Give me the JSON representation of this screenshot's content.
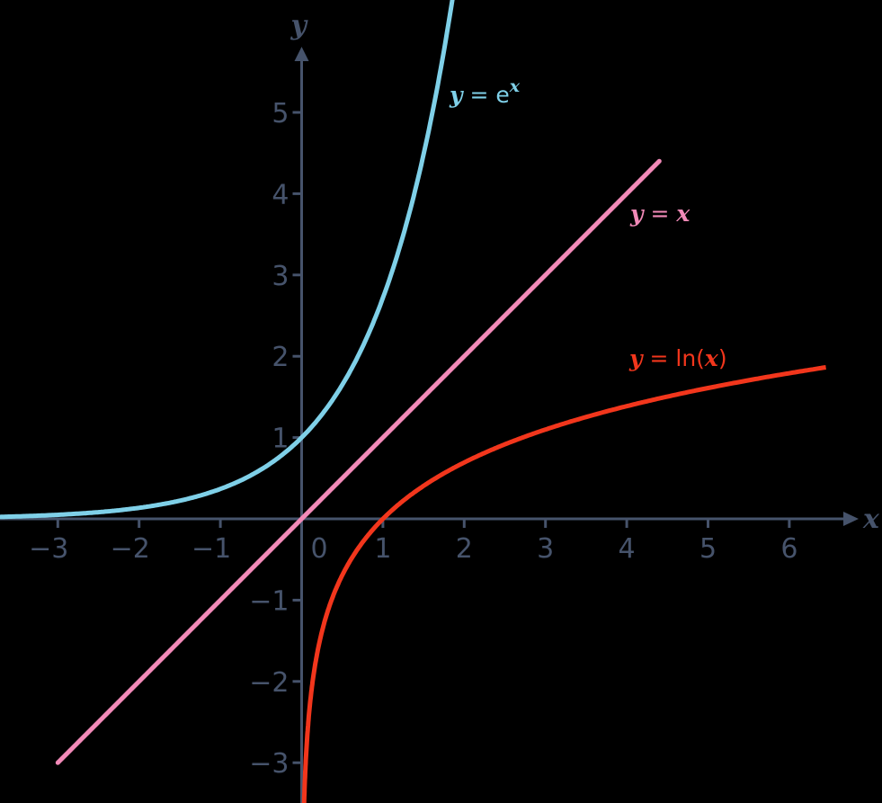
{
  "chart_data": {
    "type": "line",
    "title": "",
    "xlabel": "x",
    "ylabel": "y",
    "xlim": [
      -3.7,
      6.9
    ],
    "ylim": [
      -3.5,
      6.4
    ],
    "x_ticks": [
      -3,
      -2,
      -1,
      0,
      1,
      2,
      3,
      4,
      5,
      6
    ],
    "x_tick_labels": [
      "−3",
      "−2",
      "−1",
      "0",
      "1",
      "2",
      "3",
      "4",
      "5",
      "6"
    ],
    "y_ticks": [
      -3,
      -2,
      -1,
      1,
      2,
      3,
      4,
      5
    ],
    "y_tick_labels": [
      "−3",
      "−2",
      "−1",
      "1",
      "2",
      "3",
      "4",
      "5"
    ],
    "grid": false,
    "legend": "inline labels next to curves",
    "series": [
      {
        "name": "y = e^x",
        "function": "exp",
        "color": "#7fd0e8",
        "x_range": [
          -3.7,
          1.88
        ],
        "points": [
          [
            -3,
            0.05
          ],
          [
            -2,
            0.14
          ],
          [
            -1,
            0.37
          ],
          [
            0,
            1
          ],
          [
            0.5,
            1.65
          ],
          [
            1,
            2.72
          ],
          [
            1.5,
            4.48
          ],
          [
            1.85,
            6.36
          ]
        ],
        "label": {
          "y": "y",
          "eq": " = e",
          "sup": "x"
        }
      },
      {
        "name": "y = x",
        "function": "identity",
        "color": "#f28ab8",
        "x_range": [
          -3,
          4.4
        ],
        "points": [
          [
            -3,
            -3
          ],
          [
            0,
            0
          ],
          [
            4.4,
            4.4
          ]
        ],
        "label": {
          "y": "y",
          "eq": " = ",
          "x": "x"
        }
      },
      {
        "name": "y = ln(x)",
        "function": "ln",
        "color": "#f2361c",
        "x_range": [
          0.03,
          6.45
        ],
        "points": [
          [
            0.03,
            -3.5
          ],
          [
            0.1,
            -2.3
          ],
          [
            0.5,
            -0.69
          ],
          [
            1,
            0
          ],
          [
            2,
            0.69
          ],
          [
            3,
            1.1
          ],
          [
            4,
            1.39
          ],
          [
            5,
            1.61
          ],
          [
            6.45,
            1.86
          ]
        ],
        "label": {
          "y": "y",
          "eq": " = ln(",
          "x": "x",
          "close": ")"
        }
      }
    ]
  },
  "axes": {
    "x_name": "x",
    "y_name": "y",
    "color": "#46536b"
  }
}
